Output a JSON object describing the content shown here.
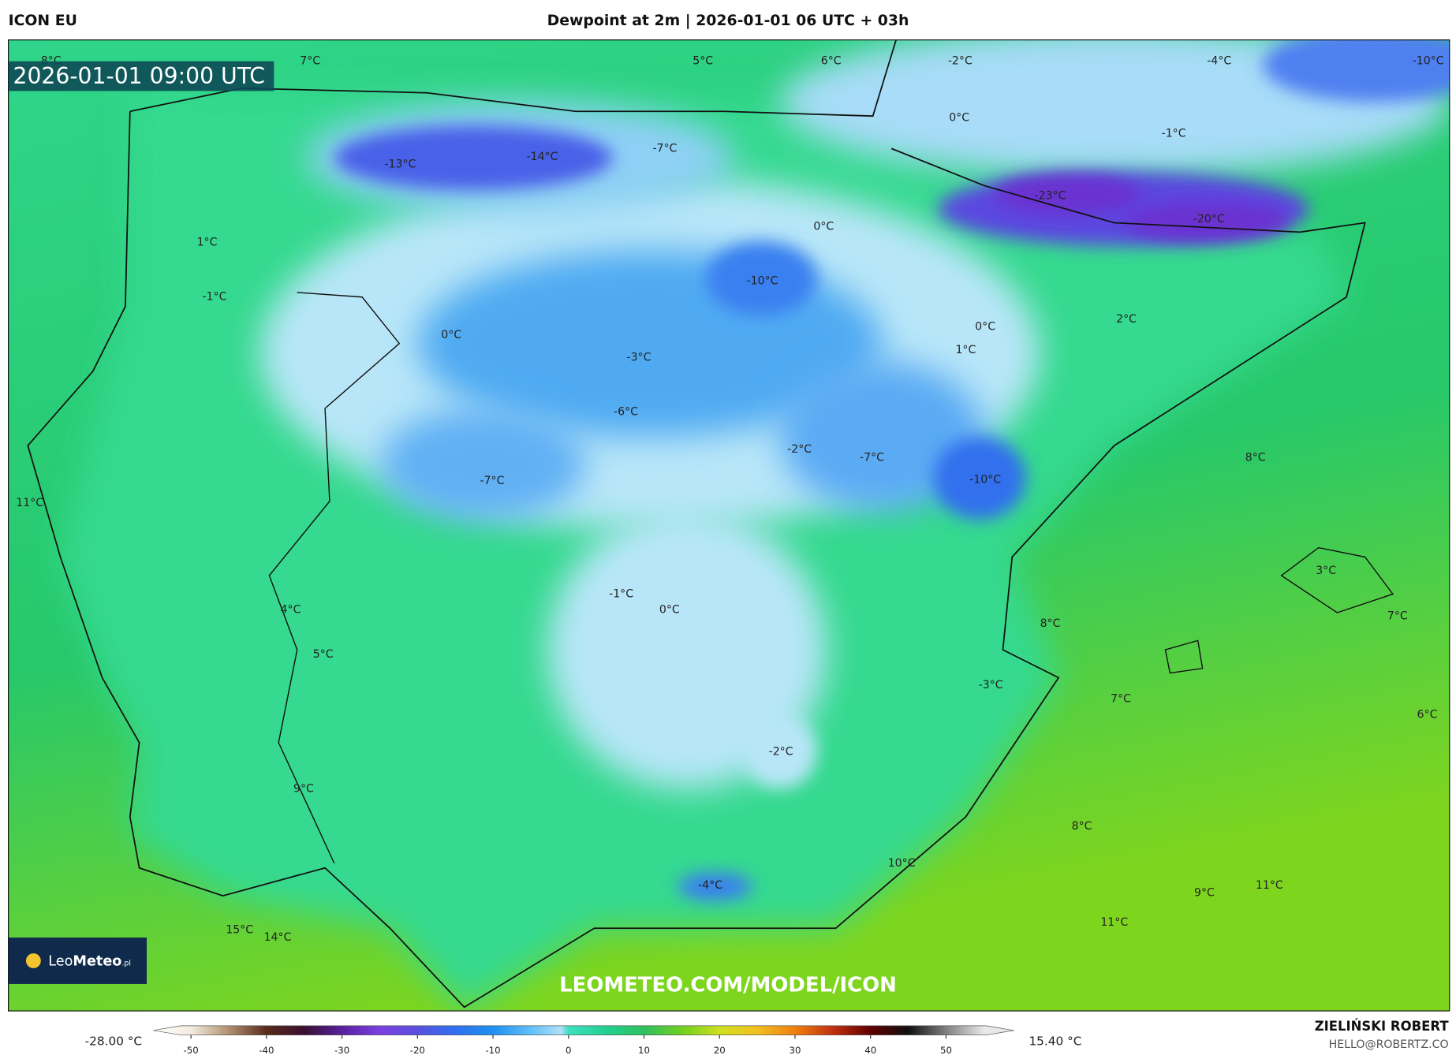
{
  "header": {
    "model": "ICON EU",
    "title": "Dewpoint at 2m | 2026-01-01 06 UTC + 03h"
  },
  "map": {
    "timestamp": "2026-01-01 09:00 UTC",
    "watermark": "LEOMETEO.COM/MODEL/ICON",
    "labels": [
      "8°C",
      "7°C",
      "5°C",
      "6°C",
      "-2°C",
      "-4°C",
      "-10°C",
      "0°C",
      "-1°C",
      "-13°C",
      "-14°C",
      "-7°C",
      "-23°C",
      "-20°C",
      "0°C",
      "1°C",
      "-1°C",
      "-10°C",
      "0°C",
      "2°C",
      "0°C",
      "1°C",
      "-3°C",
      "-6°C",
      "-2°C",
      "-7°C",
      "8°C",
      "-10°C",
      "-7°C",
      "11°C",
      "3°C",
      "-1°C",
      "0°C",
      "4°C",
      "7°C",
      "8°C",
      "5°C",
      "-3°C",
      "7°C",
      "6°C",
      "-2°C",
      "9°C",
      "8°C",
      "10°C",
      "-4°C",
      "11°C",
      "9°C",
      "11°C",
      "15°C",
      "14°C"
    ]
  },
  "logo": {
    "brand": "Leo",
    "brand2": "Meteo",
    "suffix": ".pl"
  },
  "colorbar": {
    "min_label": "-28.00 °C",
    "max_label": "15.40 °C",
    "lim": [
      -55,
      59
    ],
    "ticks": [
      -50,
      -40,
      -30,
      -20,
      -10,
      0,
      10,
      20,
      30,
      40,
      50
    ]
  },
  "footer": {
    "author": "ZIELIŃSKI ROBERT",
    "email": "HELLO@ROBERTZ.CO"
  }
}
